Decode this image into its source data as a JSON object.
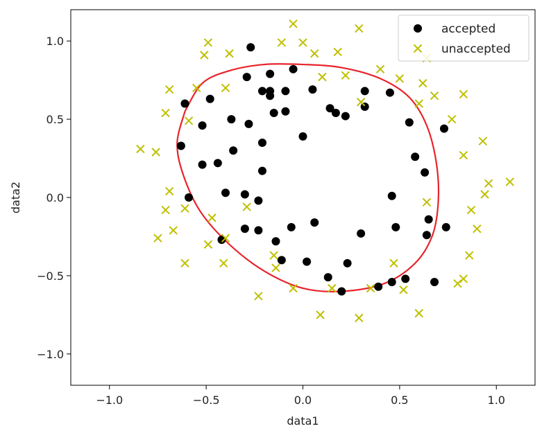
{
  "chart_data": {
    "type": "scatter",
    "xlabel": "data1",
    "ylabel": "data2",
    "xlim": [
      -1.2,
      1.2
    ],
    "ylim": [
      -1.2,
      1.2
    ],
    "xticks": [
      -1.0,
      -0.5,
      0.0,
      0.5,
      1.0
    ],
    "yticks": [
      -1.0,
      -0.5,
      0.0,
      0.5,
      1.0
    ],
    "xtick_labels": [
      "−1.0",
      "−0.5",
      "0.0",
      "0.5",
      "1.0"
    ],
    "ytick_labels": [
      "−1.0",
      "−0.5",
      "0.0",
      "0.5",
      "1.0"
    ],
    "grid": false,
    "legend_position": "top-right",
    "series": [
      {
        "name": "accepted",
        "marker": "circle",
        "color": "#000000",
        "points": [
          [
            -0.27,
            0.96
          ],
          [
            -0.29,
            0.77
          ],
          [
            -0.17,
            0.79
          ],
          [
            -0.05,
            0.82
          ],
          [
            -0.21,
            0.68
          ],
          [
            -0.17,
            0.68
          ],
          [
            -0.17,
            0.65
          ],
          [
            -0.09,
            0.68
          ],
          [
            0.05,
            0.69
          ],
          [
            -0.48,
            0.63
          ],
          [
            -0.61,
            0.6
          ],
          [
            -0.15,
            0.54
          ],
          [
            -0.09,
            0.55
          ],
          [
            0.14,
            0.57
          ],
          [
            0.17,
            0.54
          ],
          [
            0.22,
            0.52
          ],
          [
            0.32,
            0.68
          ],
          [
            0.32,
            0.58
          ],
          [
            0.45,
            0.67
          ],
          [
            0.55,
            0.48
          ],
          [
            0.73,
            0.44
          ],
          [
            -0.52,
            0.46
          ],
          [
            -0.37,
            0.5
          ],
          [
            -0.28,
            0.47
          ],
          [
            0.0,
            0.39
          ],
          [
            -0.21,
            0.35
          ],
          [
            -0.36,
            0.3
          ],
          [
            -0.63,
            0.33
          ],
          [
            -0.52,
            0.21
          ],
          [
            -0.44,
            0.22
          ],
          [
            -0.21,
            0.17
          ],
          [
            0.58,
            0.26
          ],
          [
            0.63,
            0.16
          ],
          [
            -0.59,
            0.0
          ],
          [
            -0.4,
            0.03
          ],
          [
            -0.3,
            0.02
          ],
          [
            -0.23,
            -0.02
          ],
          [
            0.46,
            0.01
          ],
          [
            0.65,
            -0.14
          ],
          [
            0.74,
            -0.19
          ],
          [
            0.48,
            -0.19
          ],
          [
            0.64,
            -0.24
          ],
          [
            -0.3,
            -0.2
          ],
          [
            -0.23,
            -0.21
          ],
          [
            -0.06,
            -0.19
          ],
          [
            0.06,
            -0.16
          ],
          [
            0.3,
            -0.23
          ],
          [
            -0.42,
            -0.27
          ],
          [
            -0.14,
            -0.28
          ],
          [
            -0.11,
            -0.4
          ],
          [
            0.02,
            -0.41
          ],
          [
            0.23,
            -0.42
          ],
          [
            0.13,
            -0.51
          ],
          [
            0.39,
            -0.57
          ],
          [
            0.46,
            -0.54
          ],
          [
            0.53,
            -0.52
          ],
          [
            0.68,
            -0.54
          ],
          [
            0.2,
            -0.6
          ]
        ]
      },
      {
        "name": "unaccepted",
        "marker": "x",
        "color": "#bfbf00",
        "points": [
          [
            -0.05,
            1.11
          ],
          [
            0.29,
            1.08
          ],
          [
            -0.49,
            0.99
          ],
          [
            -0.11,
            0.99
          ],
          [
            0.0,
            0.99
          ],
          [
            -0.51,
            0.91
          ],
          [
            -0.38,
            0.92
          ],
          [
            0.06,
            0.92
          ],
          [
            0.18,
            0.93
          ],
          [
            0.64,
            0.89
          ],
          [
            0.4,
            0.82
          ],
          [
            0.1,
            0.77
          ],
          [
            0.22,
            0.78
          ],
          [
            0.5,
            0.76
          ],
          [
            0.62,
            0.73
          ],
          [
            -0.55,
            0.7
          ],
          [
            -0.4,
            0.7
          ],
          [
            -0.69,
            0.69
          ],
          [
            0.68,
            0.65
          ],
          [
            0.83,
            0.66
          ],
          [
            0.3,
            0.61
          ],
          [
            0.6,
            0.6
          ],
          [
            -0.71,
            0.54
          ],
          [
            -0.59,
            0.49
          ],
          [
            0.77,
            0.5
          ],
          [
            0.93,
            0.36
          ],
          [
            -0.84,
            0.31
          ],
          [
            -0.76,
            0.29
          ],
          [
            0.83,
            0.27
          ],
          [
            0.96,
            0.09
          ],
          [
            1.07,
            0.1
          ],
          [
            -0.69,
            0.04
          ],
          [
            0.94,
            0.02
          ],
          [
            -0.71,
            -0.08
          ],
          [
            -0.61,
            -0.07
          ],
          [
            0.64,
            -0.03
          ],
          [
            -0.29,
            -0.06
          ],
          [
            0.87,
            -0.08
          ],
          [
            -0.47,
            -0.13
          ],
          [
            -0.67,
            -0.21
          ],
          [
            -0.75,
            -0.26
          ],
          [
            0.9,
            -0.2
          ],
          [
            -0.49,
            -0.3
          ],
          [
            -0.4,
            -0.26
          ],
          [
            -0.61,
            -0.42
          ],
          [
            -0.41,
            -0.42
          ],
          [
            -0.15,
            -0.37
          ],
          [
            -0.14,
            -0.45
          ],
          [
            0.47,
            -0.42
          ],
          [
            0.86,
            -0.37
          ],
          [
            0.83,
            -0.52
          ],
          [
            0.8,
            -0.55
          ],
          [
            -0.05,
            -0.58
          ],
          [
            0.15,
            -0.58
          ],
          [
            0.35,
            -0.58
          ],
          [
            0.52,
            -0.59
          ],
          [
            -0.23,
            -0.63
          ],
          [
            0.09,
            -0.75
          ],
          [
            0.29,
            -0.77
          ],
          [
            0.6,
            -0.74
          ]
        ]
      }
    ],
    "decision_boundary": {
      "color": "#e8232a",
      "points": [
        [
          -0.61,
          0.55
        ],
        [
          -0.52,
          0.73
        ],
        [
          -0.38,
          0.81
        ],
        [
          -0.2,
          0.85
        ],
        [
          0.0,
          0.85
        ],
        [
          0.2,
          0.83
        ],
        [
          0.4,
          0.76
        ],
        [
          0.55,
          0.64
        ],
        [
          0.64,
          0.46
        ],
        [
          0.69,
          0.22
        ],
        [
          0.7,
          -0.02
        ],
        [
          0.67,
          -0.24
        ],
        [
          0.58,
          -0.42
        ],
        [
          0.42,
          -0.55
        ],
        [
          0.2,
          -0.6
        ],
        [
          0.0,
          -0.58
        ],
        [
          -0.2,
          -0.47
        ],
        [
          -0.38,
          -0.3
        ],
        [
          -0.53,
          -0.09
        ],
        [
          -0.62,
          0.15
        ],
        [
          -0.65,
          0.35
        ],
        [
          -0.61,
          0.55
        ]
      ]
    }
  }
}
